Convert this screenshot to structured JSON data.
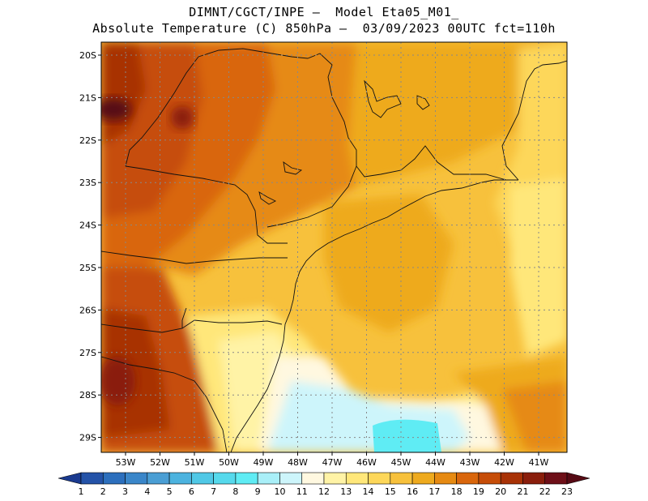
{
  "title": {
    "line1": "DIMNT/CGCT/INPE –  Model Eta05_M01_",
    "line2": "Absolute Temperature (C) 850hPa –  03/09/2023 00UTC fct=110h"
  },
  "map": {
    "lat_labels": [
      "20S",
      "21S",
      "22S",
      "23S",
      "24S",
      "25S",
      "26S",
      "27S",
      "28S",
      "29S"
    ],
    "lon_labels": [
      "53W",
      "52W",
      "51W",
      "50W",
      "49W",
      "48W",
      "47W",
      "46W",
      "45W",
      "44W",
      "43W",
      "42W",
      "41W"
    ],
    "lat_values": [
      -20,
      -21,
      -22,
      -23,
      -24,
      -25,
      -26,
      -27,
      -28,
      -29
    ],
    "lon_values": [
      -53,
      -52,
      -51,
      -50,
      -49,
      -48,
      -47,
      -46,
      -45,
      -44,
      -43,
      -42,
      -41
    ],
    "gridlines": "dotted"
  },
  "colorbar": {
    "labels": [
      "1",
      "2",
      "3",
      "4",
      "5",
      "6",
      "7",
      "8",
      "9",
      "10",
      "11",
      "12",
      "13",
      "14",
      "15",
      "16",
      "17",
      "18",
      "19",
      "20",
      "21",
      "22",
      "23"
    ],
    "colors": [
      "#1a3a8f",
      "#2453a8",
      "#2c6fbd",
      "#3a86c9",
      "#4a9ed4",
      "#4cb3df",
      "#50c8e6",
      "#56d9ec",
      "#5fecf4",
      "#a9eff8",
      "#cdf5fb",
      "#fff8e0",
      "#fff3a6",
      "#ffe77a",
      "#fdd75a",
      "#f7c13c",
      "#eeaa1e",
      "#e68a12",
      "#d9660c",
      "#c64d08",
      "#a83206",
      "#8a1e0c",
      "#6e0f18",
      "#560a14"
    ]
  },
  "fields": {
    "warm_west_color": "#c5582e",
    "hot_core_color": "#8a2a1e",
    "land_orange_color": "#e68a12",
    "ocean_yellow_color": "#f7c13c",
    "cool_south_color": "#cdf5fb",
    "cold_pool_color": "#5fecf4"
  }
}
